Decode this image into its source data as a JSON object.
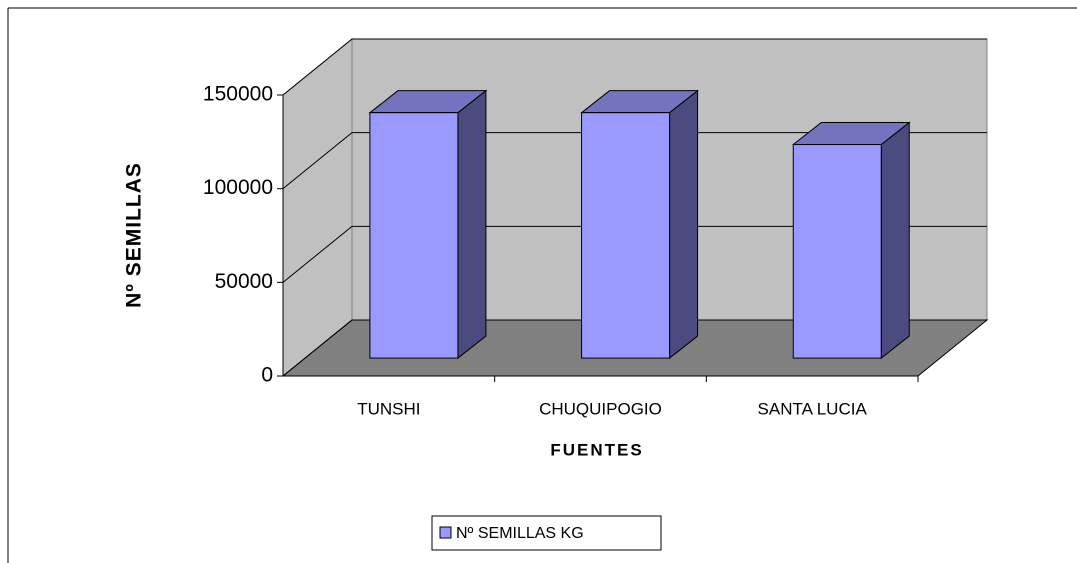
{
  "chart_data": {
    "type": "bar3d",
    "categories": [
      "TUNSHI",
      "CHUQUIPOGIO",
      "SANTA LUCIA"
    ],
    "series": [
      {
        "name": "Nº SEMILLAS KG",
        "color": "#9999ff",
        "values": [
          131000,
          131000,
          114000
        ]
      }
    ],
    "x_label": "FUENTES",
    "y_label": "Nº SEMILLAS",
    "ylim": [
      0,
      150000
    ],
    "yticks": [
      0,
      50000,
      100000,
      150000
    ],
    "grid": true,
    "legend": "bottom"
  }
}
